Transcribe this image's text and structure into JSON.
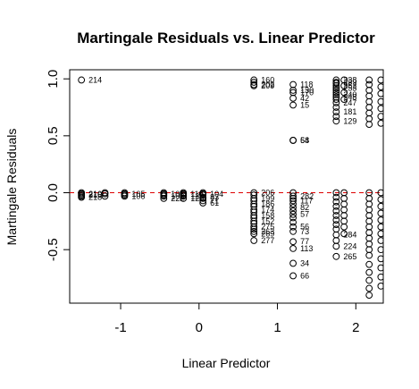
{
  "chart_data": {
    "type": "scatter",
    "title": "Martingale Residuals vs. Linear Predictor",
    "xlabel": "Linear Predictor",
    "ylabel": "Martingale Residuals",
    "xlim": [
      -1.65,
      2.35
    ],
    "ylim": [
      -0.97,
      1.08
    ],
    "xticks": [
      -1,
      0,
      1,
      2
    ],
    "yticks": [
      -0.5,
      0.0,
      0.5,
      1.0
    ],
    "xtick_labels": [
      "-1",
      "0",
      "1",
      "2"
    ],
    "ytick_labels": [
      "-0.5",
      "0.0",
      "0.5",
      "1.0"
    ],
    "reference_line": {
      "y": 0,
      "color": "#dd0000",
      "style": "dashed"
    },
    "marker": "open-circle",
    "points": [
      {
        "x": -1.5,
        "y": 0.99,
        "label": "214"
      },
      {
        "x": -1.5,
        "y": -0.01,
        "label": "210"
      },
      {
        "x": -1.5,
        "y": -0.02,
        "label": "216"
      },
      {
        "x": -1.5,
        "y": -0.04,
        "label": "218"
      },
      {
        "x": -0.95,
        "y": -0.01,
        "label": "105"
      },
      {
        "x": -0.95,
        "y": -0.03,
        "label": "106"
      },
      {
        "x": -0.45,
        "y": -0.01,
        "label": "101"
      },
      {
        "x": -0.45,
        "y": -0.03,
        "label": "102"
      },
      {
        "x": -0.45,
        "y": -0.05,
        "label": "222"
      },
      {
        "x": -0.2,
        "y": -0.01,
        "label": "110"
      },
      {
        "x": -0.2,
        "y": -0.03,
        "label": "120"
      },
      {
        "x": -0.2,
        "y": -0.05,
        "label": "125"
      },
      {
        "x": 0.05,
        "y": -0.01,
        "label": "104"
      },
      {
        "x": 0.05,
        "y": -0.04,
        "label": "83"
      },
      {
        "x": 0.05,
        "y": -0.07,
        "label": "71"
      },
      {
        "x": 0.05,
        "y": -0.09,
        "label": "61"
      },
      {
        "x": 0.7,
        "y": 0.99,
        "label": "160"
      },
      {
        "x": 0.7,
        "y": 0.95,
        "label": "202"
      },
      {
        "x": 0.7,
        "y": 0.94,
        "label": "209"
      },
      {
        "x": 0.7,
        "y": 0.0,
        "label": "206"
      },
      {
        "x": 0.7,
        "y": -0.05,
        "label": "199"
      },
      {
        "x": 0.7,
        "y": -0.1,
        "label": "186"
      },
      {
        "x": 0.7,
        "y": -0.15,
        "label": "174"
      },
      {
        "x": 0.7,
        "y": -0.2,
        "label": "158"
      },
      {
        "x": 0.7,
        "y": -0.25,
        "label": "152"
      },
      {
        "x": 0.7,
        "y": -0.3,
        "label": "275"
      },
      {
        "x": 0.7,
        "y": -0.34,
        "label": "263"
      },
      {
        "x": 0.7,
        "y": -0.36,
        "label": "269"
      },
      {
        "x": 0.7,
        "y": -0.42,
        "label": "277"
      },
      {
        "x": 1.2,
        "y": 0.95,
        "label": "118"
      },
      {
        "x": 1.2,
        "y": 0.9,
        "label": "130"
      },
      {
        "x": 1.2,
        "y": 0.88,
        "label": "170"
      },
      {
        "x": 1.2,
        "y": 0.83,
        "label": "42"
      },
      {
        "x": 1.2,
        "y": 0.77,
        "label": "15"
      },
      {
        "x": 1.2,
        "y": 0.46,
        "label": "58"
      },
      {
        "x": 1.2,
        "y": 0.46,
        "label": "64"
      },
      {
        "x": 1.2,
        "y": -0.03,
        "label": "282"
      },
      {
        "x": 1.2,
        "y": -0.07,
        "label": "117"
      },
      {
        "x": 1.2,
        "y": -0.13,
        "label": "82"
      },
      {
        "x": 1.2,
        "y": -0.19,
        "label": "57"
      },
      {
        "x": 1.2,
        "y": -0.3,
        "label": "56"
      },
      {
        "x": 1.2,
        "y": -0.34,
        "label": "73"
      },
      {
        "x": 1.2,
        "y": -0.43,
        "label": "77"
      },
      {
        "x": 1.2,
        "y": -0.49,
        "label": "113"
      },
      {
        "x": 1.2,
        "y": -0.62,
        "label": "34"
      },
      {
        "x": 1.2,
        "y": -0.73,
        "label": "66"
      },
      {
        "x": 1.75,
        "y": 0.99,
        "label": "238"
      },
      {
        "x": 1.75,
        "y": 0.97,
        "label": "239"
      },
      {
        "x": 1.75,
        "y": 0.94,
        "label": "252"
      },
      {
        "x": 1.75,
        "y": 0.92,
        "label": "253"
      },
      {
        "x": 1.75,
        "y": 0.86,
        "label": "240"
      },
      {
        "x": 1.75,
        "y": 0.84,
        "label": "248"
      },
      {
        "x": 1.75,
        "y": 0.79,
        "label": "247"
      },
      {
        "x": 1.75,
        "y": 0.71,
        "label": "181"
      },
      {
        "x": 1.75,
        "y": 0.63,
        "label": "129"
      },
      {
        "x": 1.75,
        "y": -0.37,
        "label": "284"
      },
      {
        "x": 1.75,
        "y": -0.47,
        "label": "224"
      },
      {
        "x": 1.75,
        "y": -0.56,
        "label": "265"
      }
    ],
    "unlabeled_points": [
      {
        "x": -1.5,
        "y": 0.0
      },
      {
        "x": -1.5,
        "y": -0.03
      },
      {
        "x": -1.2,
        "y": 0.0
      },
      {
        "x": -1.2,
        "y": -0.01
      },
      {
        "x": -1.2,
        "y": -0.03
      },
      {
        "x": -0.95,
        "y": 0.0
      },
      {
        "x": -0.95,
        "y": -0.02
      },
      {
        "x": -0.45,
        "y": 0.0
      },
      {
        "x": -0.45,
        "y": -0.02
      },
      {
        "x": -0.2,
        "y": 0.0
      },
      {
        "x": -0.2,
        "y": -0.02
      },
      {
        "x": 0.05,
        "y": 0.0
      },
      {
        "x": 0.05,
        "y": -0.02
      },
      {
        "x": 0.05,
        "y": -0.05
      },
      {
        "x": 0.7,
        "y": 0.97
      },
      {
        "x": 0.7,
        "y": -0.02
      },
      {
        "x": 0.7,
        "y": -0.07
      },
      {
        "x": 0.7,
        "y": -0.12
      },
      {
        "x": 0.7,
        "y": -0.17
      },
      {
        "x": 0.7,
        "y": -0.22
      },
      {
        "x": 0.7,
        "y": -0.27
      },
      {
        "x": 0.7,
        "y": -0.32
      },
      {
        "x": 1.2,
        "y": 0.0
      },
      {
        "x": 1.2,
        "y": -0.05
      },
      {
        "x": 1.2,
        "y": -0.1
      },
      {
        "x": 1.2,
        "y": -0.16
      },
      {
        "x": 1.2,
        "y": -0.22
      },
      {
        "x": 1.2,
        "y": -0.26
      },
      {
        "x": 1.75,
        "y": 0.96
      },
      {
        "x": 1.75,
        "y": 0.9
      },
      {
        "x": 1.75,
        "y": 0.88
      },
      {
        "x": 1.75,
        "y": 0.82
      },
      {
        "x": 1.75,
        "y": 0.75
      },
      {
        "x": 1.75,
        "y": 0.67
      },
      {
        "x": 1.75,
        "y": 0.0
      },
      {
        "x": 1.75,
        "y": -0.04
      },
      {
        "x": 1.75,
        "y": -0.08
      },
      {
        "x": 1.75,
        "y": -0.12
      },
      {
        "x": 1.75,
        "y": -0.16
      },
      {
        "x": 1.75,
        "y": -0.2
      },
      {
        "x": 1.75,
        "y": -0.24
      },
      {
        "x": 1.75,
        "y": -0.28
      },
      {
        "x": 1.75,
        "y": -0.32
      },
      {
        "x": 1.75,
        "y": -0.42
      },
      {
        "x": 1.85,
        "y": 0.99
      },
      {
        "x": 1.85,
        "y": 0.94
      },
      {
        "x": 1.85,
        "y": 0.88
      },
      {
        "x": 1.85,
        "y": 0.82
      },
      {
        "x": 1.85,
        "y": 0.0
      },
      {
        "x": 1.85,
        "y": -0.05
      },
      {
        "x": 1.85,
        "y": -0.1
      },
      {
        "x": 1.85,
        "y": -0.15
      },
      {
        "x": 1.85,
        "y": -0.2
      },
      {
        "x": 1.85,
        "y": -0.25
      },
      {
        "x": 1.85,
        "y": -0.3
      },
      {
        "x": 1.85,
        "y": -0.36
      },
      {
        "x": 2.17,
        "y": 0.99
      },
      {
        "x": 2.17,
        "y": 0.95
      },
      {
        "x": 2.17,
        "y": 0.9
      },
      {
        "x": 2.17,
        "y": 0.85
      },
      {
        "x": 2.17,
        "y": 0.8
      },
      {
        "x": 2.17,
        "y": 0.75
      },
      {
        "x": 2.17,
        "y": 0.7
      },
      {
        "x": 2.17,
        "y": 0.65
      },
      {
        "x": 2.17,
        "y": 0.6
      },
      {
        "x": 2.17,
        "y": 0.0
      },
      {
        "x": 2.17,
        "y": -0.05
      },
      {
        "x": 2.17,
        "y": -0.1
      },
      {
        "x": 2.17,
        "y": -0.15
      },
      {
        "x": 2.17,
        "y": -0.2
      },
      {
        "x": 2.17,
        "y": -0.25
      },
      {
        "x": 2.17,
        "y": -0.3
      },
      {
        "x": 2.17,
        "y": -0.35
      },
      {
        "x": 2.17,
        "y": -0.4
      },
      {
        "x": 2.17,
        "y": -0.45
      },
      {
        "x": 2.17,
        "y": -0.5
      },
      {
        "x": 2.17,
        "y": -0.55
      },
      {
        "x": 2.17,
        "y": -0.63
      },
      {
        "x": 2.17,
        "y": -0.7
      },
      {
        "x": 2.17,
        "y": -0.77
      },
      {
        "x": 2.17,
        "y": -0.84
      },
      {
        "x": 2.17,
        "y": -0.9
      },
      {
        "x": 2.32,
        "y": 0.99
      },
      {
        "x": 2.32,
        "y": 0.93
      },
      {
        "x": 2.32,
        "y": 0.87
      },
      {
        "x": 2.32,
        "y": 0.8
      },
      {
        "x": 2.32,
        "y": 0.74
      },
      {
        "x": 2.32,
        "y": 0.67
      },
      {
        "x": 2.32,
        "y": 0.61
      },
      {
        "x": 2.32,
        "y": 0.0
      },
      {
        "x": 2.32,
        "y": -0.06
      },
      {
        "x": 2.32,
        "y": -0.12
      },
      {
        "x": 2.32,
        "y": -0.18
      },
      {
        "x": 2.32,
        "y": -0.24
      },
      {
        "x": 2.32,
        "y": -0.3
      },
      {
        "x": 2.32,
        "y": -0.36
      },
      {
        "x": 2.32,
        "y": -0.42
      },
      {
        "x": 2.32,
        "y": -0.5
      },
      {
        "x": 2.32,
        "y": -0.58
      },
      {
        "x": 2.32,
        "y": -0.66
      },
      {
        "x": 2.32,
        "y": -0.74
      },
      {
        "x": 2.32,
        "y": -0.82
      }
    ]
  }
}
